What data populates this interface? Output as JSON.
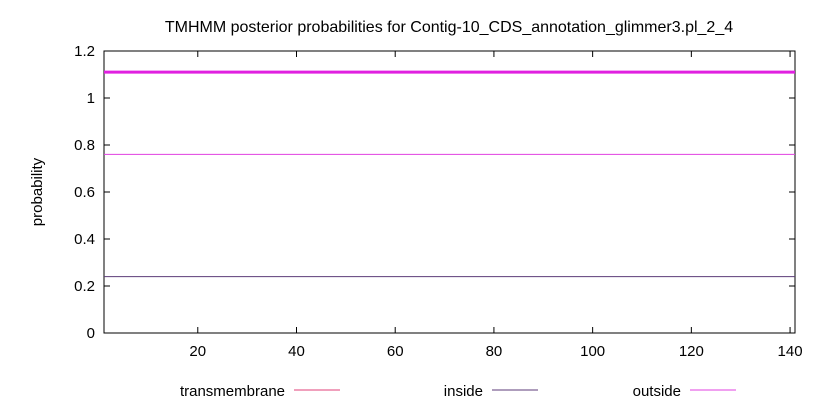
{
  "chart_data": {
    "type": "line",
    "title": "TMHMM posterior probabilities for Contig-10_CDS_annotation_glimmer3.pl_2_4",
    "xlabel": "",
    "ylabel": "probability",
    "xlim": [
      1,
      141
    ],
    "ylim": [
      0,
      1.2
    ],
    "x_ticks": [
      20,
      40,
      60,
      80,
      100,
      120,
      140
    ],
    "y_ticks": [
      0,
      0.2,
      0.4,
      0.6,
      0.8,
      1,
      1.2
    ],
    "y_tick_labels": [
      "0",
      "0.2",
      "0.4",
      "0.6",
      "0.8",
      "1",
      "1.2"
    ],
    "grid": false,
    "legend_position": "bottom",
    "series": [
      {
        "name": "transmembrane",
        "color": "#e0407a",
        "width": 1,
        "points": []
      },
      {
        "name": "inside",
        "color": "#5c3b78",
        "width": 1,
        "points": [
          [
            1,
            0.24
          ],
          [
            141,
            0.24
          ]
        ]
      },
      {
        "name": "outside",
        "color": "#e040e0",
        "width": 1,
        "points": [
          [
            1,
            0.76
          ],
          [
            141,
            0.76
          ]
        ]
      },
      {
        "name": "",
        "color": "#e020e0",
        "width": 3,
        "points": [
          [
            1,
            1.11
          ],
          [
            141,
            1.11
          ]
        ]
      }
    ]
  }
}
